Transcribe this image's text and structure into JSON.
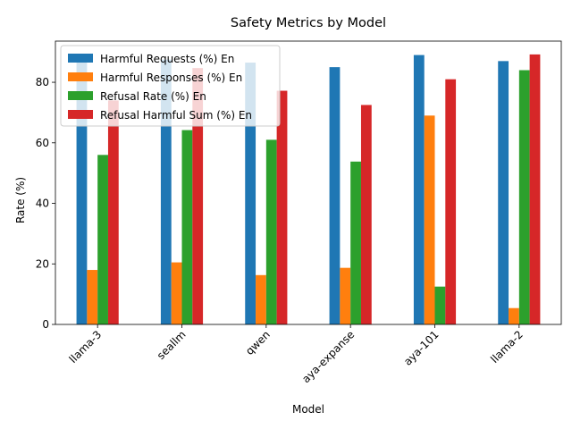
{
  "chart_data": {
    "type": "bar",
    "title": "Safety Metrics by Model",
    "xlabel": "Model",
    "ylabel": "Rate (%)",
    "categories": [
      "llama-3",
      "seallm",
      "qwen",
      "aya-expanse",
      "aya-101",
      "llama-2"
    ],
    "series": [
      {
        "name": "Harmful Requests (%) En",
        "color": "#1f77b4",
        "values": [
          87,
          87.5,
          86.5,
          85,
          89,
          87
        ]
      },
      {
        "name": "Harmful Responses (%) En",
        "color": "#ff7f0e",
        "values": [
          18,
          20.5,
          16.3,
          18.7,
          69,
          5.4
        ]
      },
      {
        "name": "Refusal Rate (%) En",
        "color": "#2ca02c",
        "values": [
          56,
          64.2,
          61,
          53.8,
          12.5,
          84
        ]
      },
      {
        "name": "Refusal Harmful Sum (%) En",
        "color": "#d62728",
        "values": [
          74,
          84.7,
          77.2,
          72.5,
          81,
          89.2
        ]
      }
    ],
    "ylim": [
      0,
      93.6
    ],
    "yticks": [
      0,
      20,
      40,
      60,
      80
    ],
    "legend": "upper left",
    "grid": false
  }
}
